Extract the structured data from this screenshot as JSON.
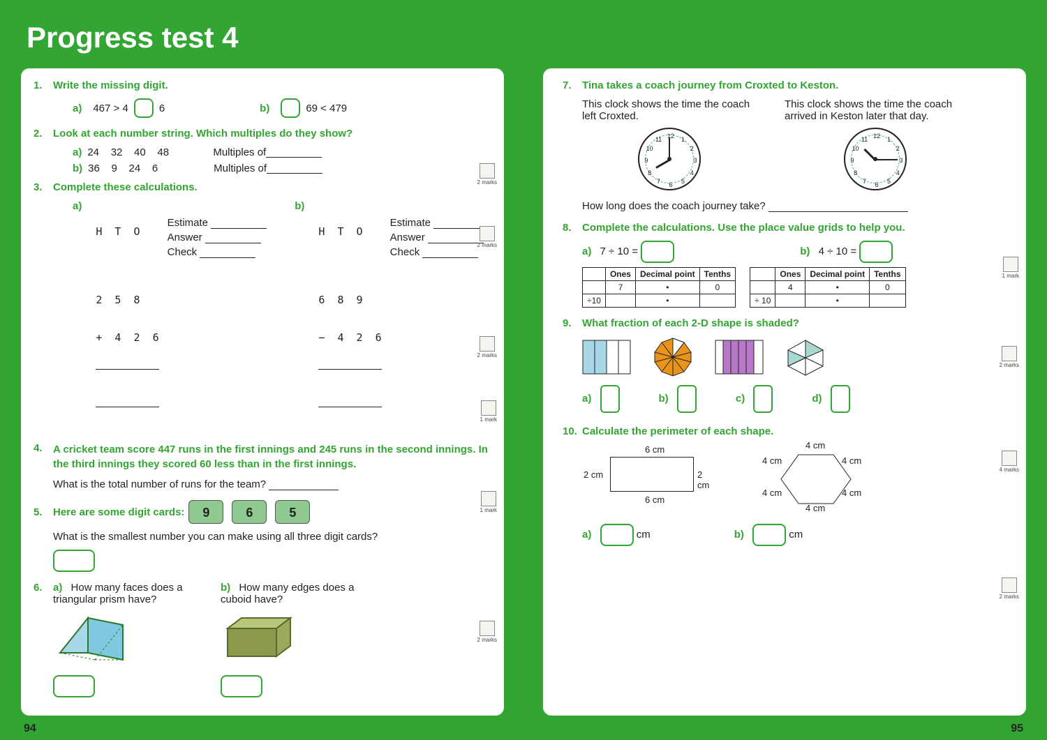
{
  "header": "Progress test 4",
  "page_left_num": "94",
  "page_right_num": "95",
  "green": "#33a532",
  "q1": {
    "text": "Write the missing digit.",
    "a_before": "467 > 4",
    "a_after": "6",
    "b_after": "69 < 479",
    "marks": "2 marks"
  },
  "q2": {
    "text": "Look at each number string. Which multiples do they show?",
    "a_nums": "24    32    40    48",
    "b_nums": "36    9    24    6",
    "label": "Multiples of",
    "marks": "2 marks"
  },
  "q3": {
    "text": "Complete these calculations.",
    "hto": "H  T  O",
    "a_r1": "2  5  8",
    "a_r2": "+  4  2  6",
    "b_r1": "6  8  9",
    "b_r2": "−  4  2  6",
    "est": "Estimate",
    "ans": "Answer",
    "chk": "Check",
    "marks": "2 marks"
  },
  "q4": {
    "text": "A cricket team score 447 runs in the first innings and 245 runs in the second innings. In the third innings they scored 60 less than in the first innings.",
    "sub": "What is the total number of runs for the team?",
    "marks": "1 mark"
  },
  "q5": {
    "text": "Here are some digit cards:",
    "cards": [
      "9",
      "6",
      "5"
    ],
    "sub": "What is the smallest number you can make using all three digit cards?",
    "marks": "1 mark"
  },
  "q6": {
    "a": "How many faces does a triangular prism have?",
    "b": "How many edges does a cuboid have?",
    "marks": "2 marks"
  },
  "q7": {
    "text": "Tina takes a coach journey from Croxted to Keston.",
    "left_caption": "This clock shows the time the coach left Croxted.",
    "right_caption": "This clock shows the time the coach arrived in Keston later that day.",
    "sub": "How long does the coach journey take?",
    "marks": "1 mark",
    "clock1": {
      "hour_angle": 150,
      "min_angle": 270
    },
    "clock2": {
      "hour_angle": 225,
      "min_angle": 0
    }
  },
  "q8": {
    "text": "Complete the calculations. Use the place value grids to help you.",
    "a": "7 ÷ 10 =",
    "b": "4 ÷ 10 =",
    "headers": [
      "",
      "Ones",
      "Decimal point",
      "Tenths"
    ],
    "r1a": [
      "",
      "7",
      "•",
      "0"
    ],
    "r2a": [
      "÷10",
      "",
      "•",
      ""
    ],
    "r1b": [
      "",
      "4",
      "•",
      "0"
    ],
    "r2b": [
      "÷ 10",
      "",
      "•",
      ""
    ],
    "marks": "2 marks"
  },
  "q9": {
    "text": "What fraction of each 2-D shape is shaded?",
    "labels": [
      "a)",
      "b)",
      "c)",
      "d)"
    ],
    "marks": "4 marks"
  },
  "q10": {
    "text": "Calculate the perimeter of each shape.",
    "rect": {
      "w": "6 cm",
      "h": "2 cm"
    },
    "hex": "4 cm",
    "cm": "cm",
    "marks": "2 marks"
  }
}
